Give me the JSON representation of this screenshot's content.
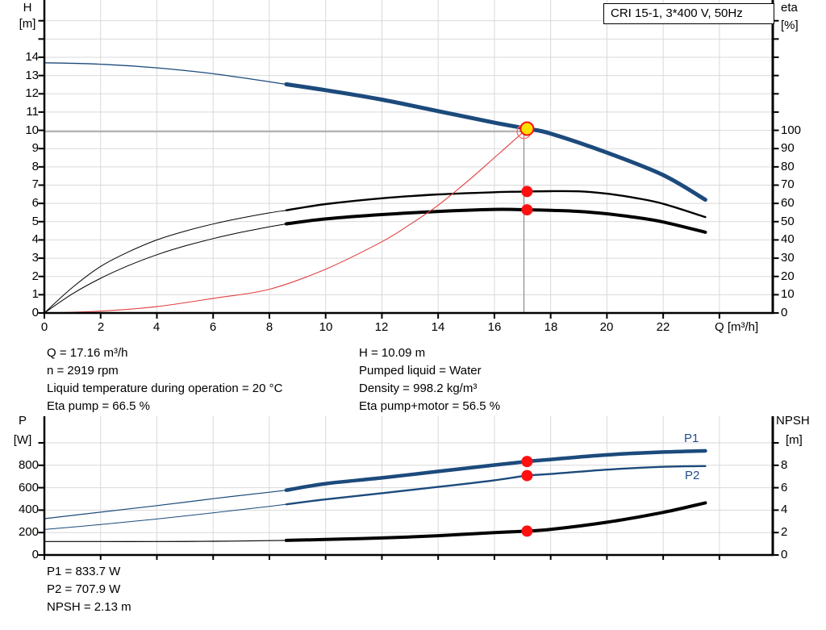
{
  "colors": {
    "curve_blue": "#1c4a7c",
    "curve_black": "#000000",
    "system_red": "#e04040",
    "marker_red": "#ff1010",
    "ring_red": "#ff6a6a",
    "duty_yellow": "#ffdf00",
    "grid": "#d9d9d9",
    "crosshair": "#8c8c8c",
    "axis": "#000000",
    "label_blue": "#1f4e8c"
  },
  "info_panel": {
    "left": [
      "Q = 17.16 m³/h",
      "n = 2919 rpm",
      "Liquid temperature during operation = 20 °C",
      "Eta pump = 66.5 %"
    ],
    "right": [
      "H = 10.09 m",
      "Pumped liquid = Water",
      "Density = 998.2 kg/m³",
      "Eta pump+motor = 56.5 %"
    ]
  },
  "results_panel": {
    "lines": [
      "P1 = 833.7 W",
      "P2 = 707.9 W",
      "NPSH = 2.13 m"
    ]
  },
  "chart_data": [
    {
      "type": "line",
      "name": "pump-performance-chart",
      "title": "CRI 15-1, 3*400 V, 50Hz",
      "xlabel": "Q [m³/h]",
      "ylabel_lines": [
        "H",
        "[m]"
      ],
      "y2label_lines": [
        "eta",
        "[%]"
      ],
      "xlim": [
        0,
        25.9
      ],
      "ylim": [
        0,
        17.1
      ],
      "y2lim": [
        0,
        171
      ],
      "grid": true,
      "x_tick_labels": [
        "0",
        "2",
        "4",
        "6",
        "8",
        "10",
        "12",
        "14",
        "16",
        "18",
        "20",
        "22"
      ],
      "y_tick_labels": [
        "14",
        "13",
        "12",
        "11",
        "10",
        "9",
        "8",
        "7",
        "6",
        "5",
        "4",
        "3",
        "2",
        "1",
        "0"
      ],
      "y2_tick_labels": [
        "100",
        "90",
        "80",
        "70",
        "60",
        "50",
        "40",
        "30",
        "20",
        "10",
        "0"
      ],
      "series": [
        {
          "name": "head-curve",
          "axis": "y",
          "color_key": "curve_blue",
          "width_thin": 1.3,
          "width_thick": 5,
          "thick_from": 8.6,
          "samples": [
            [
              0,
              13.7
            ],
            [
              2,
              13.62
            ],
            [
              4,
              13.42
            ],
            [
              6,
              13.1
            ],
            [
              8.6,
              12.52
            ],
            [
              10,
              12.2
            ],
            [
              12,
              11.68
            ],
            [
              14,
              11.05
            ],
            [
              16,
              10.42
            ],
            [
              17.16,
              10.09
            ],
            [
              18,
              9.82
            ],
            [
              20,
              8.78
            ],
            [
              22,
              7.55
            ],
            [
              23.5,
              6.2
            ]
          ]
        },
        {
          "name": "eta-pump-curve",
          "axis": "y2",
          "color_key": "curve_black",
          "width_thin": 1,
          "width_thick": 2.4,
          "thick_from": 8.6,
          "samples": [
            [
              0,
              0
            ],
            [
              1,
              14
            ],
            [
              2,
              25.5
            ],
            [
              3,
              33.5
            ],
            [
              4,
              40
            ],
            [
              5,
              44.8
            ],
            [
              6,
              48.7
            ],
            [
              7,
              52
            ],
            [
              8,
              54.8
            ],
            [
              8.6,
              56.2
            ],
            [
              10,
              59.6
            ],
            [
              12,
              62.8
            ],
            [
              14,
              64.9
            ],
            [
              16,
              66.1
            ],
            [
              17.16,
              66.5
            ],
            [
              18,
              66.7
            ],
            [
              19,
              66.6
            ],
            [
              20,
              65.3
            ],
            [
              21,
              63
            ],
            [
              22,
              59.8
            ],
            [
              23.5,
              52.5
            ]
          ]
        },
        {
          "name": "eta-pump-motor-curve",
          "axis": "y2",
          "color_key": "curve_black",
          "width_thin": 1,
          "width_thick": 4,
          "thick_from": 8.6,
          "samples": [
            [
              0,
              0
            ],
            [
              1,
              10.5
            ],
            [
              2,
              19
            ],
            [
              3,
              26
            ],
            [
              4,
              31.9
            ],
            [
              5,
              36.7
            ],
            [
              6,
              40.7
            ],
            [
              7,
              44.2
            ],
            [
              8,
              47.2
            ],
            [
              8.6,
              48.8
            ],
            [
              10,
              51.5
            ],
            [
              12,
              53.9
            ],
            [
              14,
              55.6
            ],
            [
              16,
              56.7
            ],
            [
              17.16,
              56.5
            ],
            [
              18,
              56.2
            ],
            [
              19,
              55.6
            ],
            [
              20,
              54.3
            ],
            [
              21,
              52.4
            ],
            [
              22,
              49.8
            ],
            [
              23.5,
              44.2
            ]
          ]
        },
        {
          "name": "system-curve",
          "axis": "y",
          "color_key": "system_red",
          "width_thin": 1.1,
          "width_thick": 1.1,
          "thick_from": null,
          "samples": [
            [
              0,
              0
            ],
            [
              2,
              0.1
            ],
            [
              4,
              0.35
            ],
            [
              6,
              0.8
            ],
            [
              8,
              1.3
            ],
            [
              10,
              2.4
            ],
            [
              12,
              3.9
            ],
            [
              13,
              4.85
            ],
            [
              14,
              5.9
            ],
            [
              15,
              7.15
            ],
            [
              16,
              8.5
            ],
            [
              17.16,
              10.09
            ]
          ]
        }
      ],
      "duty_point": {
        "Q": 17.16,
        "H": 10.09,
        "eta_pump": 66.5,
        "eta_pump_motor": 56.5
      },
      "requested_point": {
        "Q": 17.05,
        "H": 9.93
      }
    },
    {
      "type": "line",
      "name": "power-npsh-chart",
      "ylabel_lines": [
        "P",
        "[W]"
      ],
      "y2label_lines": [
        "NPSH",
        "[m]"
      ],
      "xlim": [
        0,
        25.9
      ],
      "ylim": [
        0,
        1237
      ],
      "y2lim": [
        0,
        12.4
      ],
      "grid": true,
      "y_tick_labels": [
        "800",
        "600",
        "400",
        "200",
        "0"
      ],
      "y2_tick_labels": [
        "8",
        "6",
        "4",
        "2",
        "0"
      ],
      "series": [
        {
          "name": "p1-curve",
          "label": "P1",
          "axis": "y",
          "color_key": "curve_blue",
          "width_thin": 1.2,
          "width_thick": 4.5,
          "thick_from": 8.6,
          "samples": [
            [
              0,
              324
            ],
            [
              2,
              382
            ],
            [
              4,
              440
            ],
            [
              6,
              502
            ],
            [
              8,
              560
            ],
            [
              8.6,
              578
            ],
            [
              10,
              636
            ],
            [
              12,
              688
            ],
            [
              14,
              745
            ],
            [
              16,
              802
            ],
            [
              17.16,
              833.7
            ],
            [
              18,
              852
            ],
            [
              20,
              893
            ],
            [
              22,
              918
            ],
            [
              23.5,
              929
            ]
          ]
        },
        {
          "name": "p2-curve",
          "label": "P2",
          "axis": "y",
          "color_key": "curve_blue",
          "width_thin": 1,
          "width_thick": 2.4,
          "thick_from": 8.6,
          "samples": [
            [
              0,
              227
            ],
            [
              2,
              272
            ],
            [
              4,
              321
            ],
            [
              6,
              376
            ],
            [
              8,
              434
            ],
            [
              8.6,
              452
            ],
            [
              10,
              496
            ],
            [
              12,
              551
            ],
            [
              14,
              607
            ],
            [
              16,
              666
            ],
            [
              17.16,
              707.9
            ],
            [
              18,
              722
            ],
            [
              20,
              761
            ],
            [
              22,
              786
            ],
            [
              23.5,
              793
            ]
          ]
        },
        {
          "name": "npsh-curve",
          "axis": "y2",
          "color_key": "curve_black",
          "width_thin": 1.2,
          "width_thick": 4,
          "thick_from": 8.6,
          "samples": [
            [
              0,
              1.2
            ],
            [
              2,
              1.2
            ],
            [
              4,
              1.2
            ],
            [
              6,
              1.22
            ],
            [
              8,
              1.28
            ],
            [
              8.6,
              1.3
            ],
            [
              10,
              1.38
            ],
            [
              12,
              1.52
            ],
            [
              14,
              1.72
            ],
            [
              16,
              2.0
            ],
            [
              17.16,
              2.13
            ],
            [
              18,
              2.28
            ],
            [
              20,
              2.92
            ],
            [
              22,
              3.8
            ],
            [
              23.5,
              4.65
            ]
          ]
        }
      ],
      "duty_point": {
        "Q": 17.16,
        "P1": 833.7,
        "P2": 707.9,
        "NPSH": 2.13
      }
    }
  ]
}
